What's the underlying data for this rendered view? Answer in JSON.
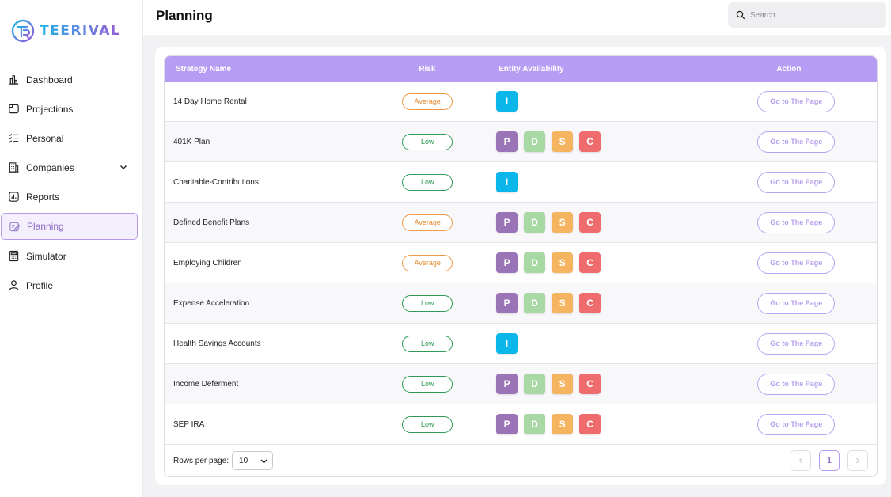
{
  "app": {
    "logo_text": "TEERIVAL",
    "page_title": "Planning",
    "colors": {
      "accent": "#b69cf2",
      "accent_dark": "#8b6bc9",
      "entity_p": "#9b74b8",
      "entity_d": "#a8d8a4",
      "entity_s": "#f5b460",
      "entity_c": "#ee6b6e",
      "entity_i": "#0ab6ea"
    }
  },
  "search": {
    "placeholder": "Search"
  },
  "sidebar": {
    "items": [
      {
        "label": "Dashboard",
        "icon": "bar-chart-icon"
      },
      {
        "label": "Projections",
        "icon": "window-icon"
      },
      {
        "label": "Personal",
        "icon": "checklist-icon"
      },
      {
        "label": "Companies",
        "icon": "building-icon",
        "has_submenu": true
      },
      {
        "label": "Reports",
        "icon": "report-chart-icon"
      },
      {
        "label": "Planning",
        "icon": "edit-note-icon",
        "active": true
      },
      {
        "label": "Simulator",
        "icon": "calculator-icon"
      },
      {
        "label": "Profile",
        "icon": "user-icon"
      }
    ]
  },
  "table": {
    "headers": {
      "name": "Strategy Name",
      "risk": "Risk",
      "entity": "Entity Availability",
      "action": "Action"
    },
    "action_label": "Go to The Page",
    "rows": [
      {
        "name": "14 Day Home Rental",
        "risk": "Average",
        "entities": [
          "I"
        ]
      },
      {
        "name": "401K Plan",
        "risk": "Low",
        "entities": [
          "P",
          "D",
          "S",
          "C"
        ]
      },
      {
        "name": "Charitable-Contributions",
        "risk": "Low",
        "entities": [
          "I"
        ]
      },
      {
        "name": "Defined Benefit Plans",
        "risk": "Average",
        "entities": [
          "P",
          "D",
          "S",
          "C"
        ]
      },
      {
        "name": "Employing Children",
        "risk": "Average",
        "entities": [
          "P",
          "D",
          "S",
          "C"
        ]
      },
      {
        "name": "Expense Acceleration",
        "risk": "Low",
        "entities": [
          "P",
          "D",
          "S",
          "C"
        ]
      },
      {
        "name": "Health Savings Accounts",
        "risk": "Low",
        "entities": [
          "I"
        ]
      },
      {
        "name": "Income Deferment",
        "risk": "Low",
        "entities": [
          "P",
          "D",
          "S",
          "C"
        ]
      },
      {
        "name": "SEP IRA",
        "risk": "Low",
        "entities": [
          "P",
          "D",
          "S",
          "C"
        ]
      }
    ]
  },
  "footer": {
    "rows_per_page_label": "Rows per page:",
    "rows_per_page_value": "10",
    "current_page": "1"
  }
}
